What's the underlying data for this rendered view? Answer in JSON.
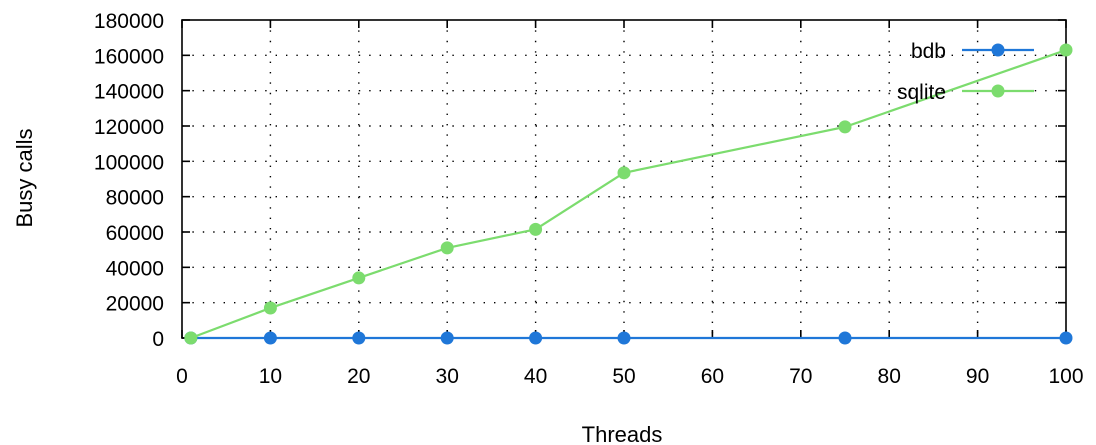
{
  "chart_data": {
    "type": "line",
    "xlabel": "Threads",
    "ylabel": "Busy calls",
    "xlim": [
      0,
      100
    ],
    "ylim": [
      0,
      180000
    ],
    "x_ticks": [
      0,
      10,
      20,
      30,
      40,
      50,
      60,
      70,
      80,
      90,
      100
    ],
    "y_ticks": [
      0,
      20000,
      40000,
      60000,
      80000,
      100000,
      120000,
      140000,
      160000,
      180000
    ],
    "grid": true,
    "legend_position": "top-right",
    "series": [
      {
        "name": "bdb",
        "color": "#1f77d8",
        "x": [
          1,
          10,
          20,
          30,
          40,
          50,
          75,
          100
        ],
        "y": [
          0,
          0,
          0,
          0,
          0,
          0,
          0,
          0
        ]
      },
      {
        "name": "sqlite",
        "color": "#7cdc6e",
        "x": [
          1,
          10,
          20,
          30,
          40,
          50,
          75,
          100
        ],
        "y": [
          0,
          17000,
          34000,
          51000,
          61500,
          93500,
          119500,
          163000
        ]
      }
    ]
  }
}
